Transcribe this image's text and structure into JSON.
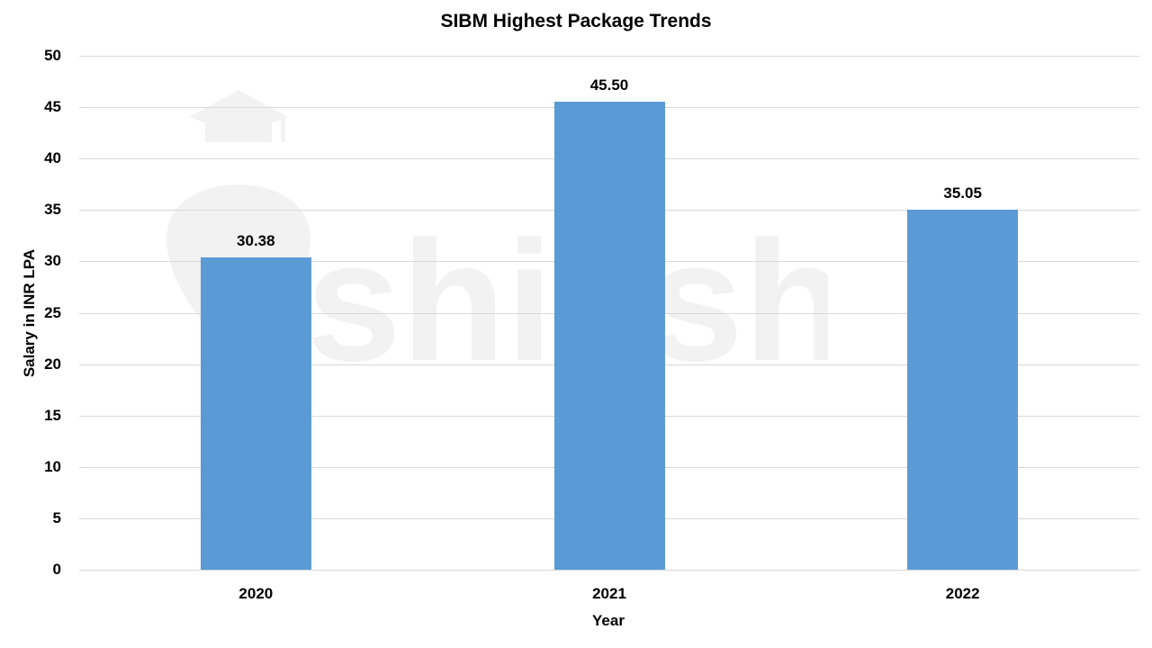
{
  "chart_data": {
    "type": "bar",
    "title": "SIBM Highest Package Trends",
    "xlabel": "Year",
    "ylabel": "Salary in INR LPA",
    "categories": [
      "2020",
      "2021",
      "2022"
    ],
    "values": [
      30.38,
      45.5,
      35.05
    ],
    "data_labels": [
      "30.38",
      "45.50",
      "35.05"
    ],
    "ylim": [
      0,
      50
    ],
    "yticks": [
      0,
      5,
      10,
      15,
      20,
      25,
      30,
      35,
      40,
      45,
      50
    ],
    "grid": true,
    "legend": null,
    "bar_color": "#5b9bd5",
    "watermark": "shiksha"
  }
}
